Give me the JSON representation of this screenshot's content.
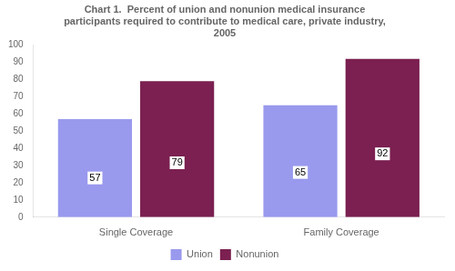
{
  "chart_data": {
    "type": "bar",
    "title": "Chart 1.  Percent of union and nonunion medical insurance\nparticipants required to contribute to medical care, private industry,\n2005",
    "categories": [
      "Single Coverage",
      "Family Coverage"
    ],
    "series": [
      {
        "name": "Union",
        "color": "#9999ee",
        "values": [
          57,
          65
        ]
      },
      {
        "name": "Nonunion",
        "color": "#7b2050",
        "values": [
          79,
          92
        ]
      }
    ],
    "ylim": [
      0,
      100
    ],
    "yticks": [
      0,
      10,
      20,
      30,
      40,
      50,
      60,
      70,
      80,
      90,
      100
    ],
    "grid": false,
    "legend": "bottom",
    "data_labels": true
  }
}
